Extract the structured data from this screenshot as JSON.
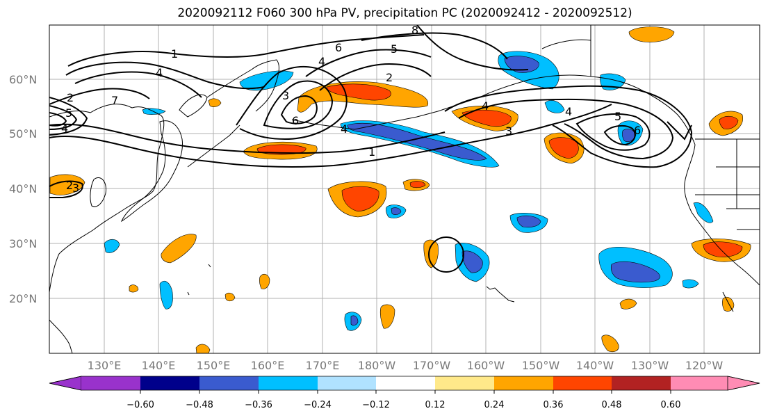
{
  "title": "2020092112 F060 300 hPa PV, precipitation PC (2020092412 - 2020092512)",
  "lat_labels": [
    "60°N",
    "50°N",
    "40°N",
    "30°N",
    "20°N"
  ],
  "lon_labels": [
    "130°E",
    "140°E",
    "150°E",
    "160°E",
    "170°E",
    "180°W",
    "170°W",
    "160°W",
    "150°W",
    "140°W",
    "130°W",
    "120°W"
  ],
  "contour_labels": [
    "1",
    "4",
    "8",
    "6",
    "4",
    "5",
    "2",
    "2",
    "5",
    "4",
    "7",
    "6",
    "4",
    "3",
    "1",
    "5",
    "3",
    "4",
    "6",
    "4",
    "3",
    "2"
  ],
  "colorbar": {
    "ticks": [
      "−0.60",
      "−0.48",
      "−0.36",
      "−0.24",
      "−0.12",
      "0.12",
      "0.24",
      "0.36",
      "0.48",
      "0.60"
    ],
    "colors": [
      "#9932cc",
      "#00008b",
      "#3a5bcf",
      "#00bfff",
      "#b0e2ff",
      "#ffffff",
      "#ffe98a",
      "#ffa500",
      "#ff4500",
      "#b22222",
      "#ff8cb4"
    ]
  },
  "fill_colors": {
    "orange": "#ffa500",
    "red": "#ff4500",
    "yellow": "#ffe98a",
    "lightblue": "#b0e2ff",
    "cyan": "#00bfff",
    "blue": "#3a5bcf"
  }
}
